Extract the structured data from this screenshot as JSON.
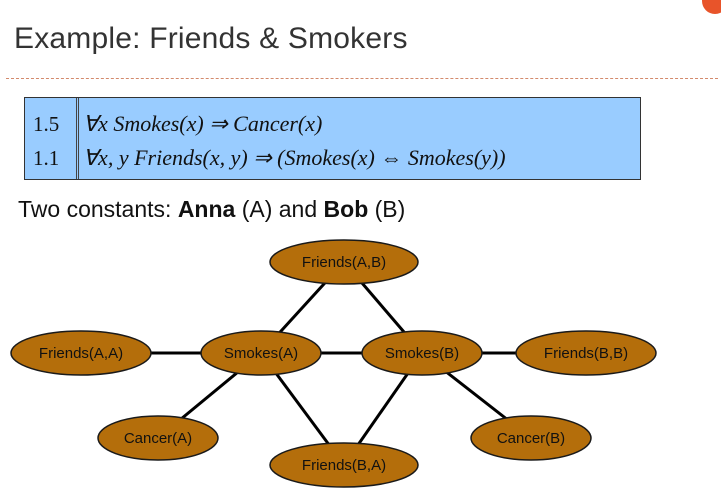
{
  "slide": {
    "title": "Example: Friends & Smokers"
  },
  "formulas": [
    {
      "weight": "1.5",
      "text": "∀x Smokes(x) ⇒ Cancer(x)"
    },
    {
      "weight": "1.1",
      "text": "∀x, y Friends(x, y) ⇒ (Smokes(x) ⇔ Smokes(y))"
    }
  ],
  "constants_line": {
    "prefix": "Two constants: ",
    "name1": "Anna",
    "abbr1": " (A) and ",
    "name2": "Bob",
    "abbr2": " (B)"
  },
  "graph": {
    "node_color": "#b46e0b",
    "nodes": [
      {
        "id": "friends_ab",
        "label": "Friends(A,B)"
      },
      {
        "id": "friends_aa",
        "label": "Friends(A,A)"
      },
      {
        "id": "smokes_a",
        "label": "Smokes(A)"
      },
      {
        "id": "smokes_b",
        "label": "Smokes(B)"
      },
      {
        "id": "friends_bb",
        "label": "Friends(B,B)"
      },
      {
        "id": "cancer_a",
        "label": "Cancer(A)"
      },
      {
        "id": "cancer_b",
        "label": "Cancer(B)"
      },
      {
        "id": "friends_ba",
        "label": "Friends(B,A)"
      }
    ],
    "edges": [
      [
        "friends_aa",
        "smokes_a"
      ],
      [
        "smokes_a",
        "smokes_b"
      ],
      [
        "smokes_b",
        "friends_bb"
      ],
      [
        "smokes_a",
        "friends_ab"
      ],
      [
        "smokes_b",
        "friends_ab"
      ],
      [
        "smokes_a",
        "friends_ba"
      ],
      [
        "smokes_b",
        "friends_ba"
      ],
      [
        "smokes_a",
        "cancer_a"
      ],
      [
        "smokes_b",
        "cancer_b"
      ]
    ]
  }
}
